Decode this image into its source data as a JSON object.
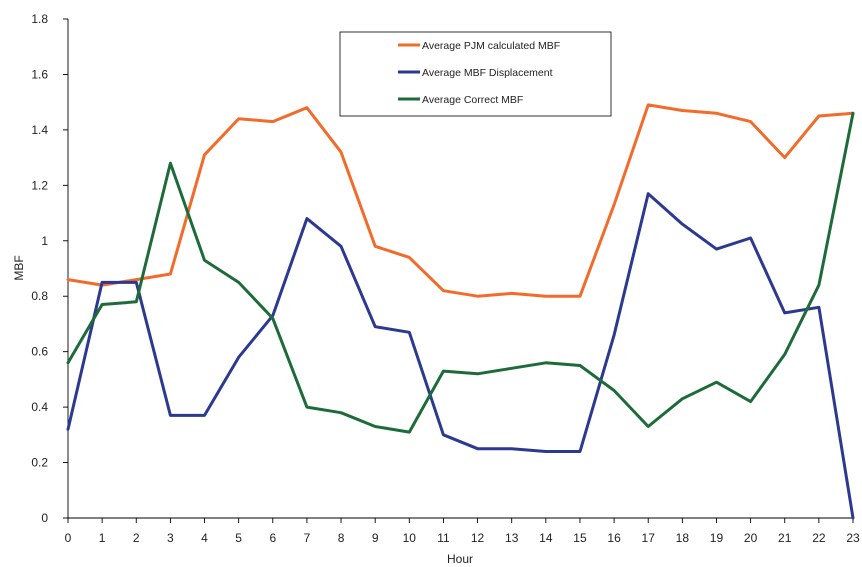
{
  "chart_data": {
    "type": "line",
    "title": "",
    "xlabel": "Hour",
    "ylabel": "MBF",
    "x": [
      0,
      1,
      2,
      3,
      4,
      5,
      6,
      7,
      8,
      9,
      10,
      11,
      12,
      13,
      14,
      15,
      16,
      17,
      18,
      19,
      20,
      21,
      22,
      23
    ],
    "x_tick_labels": [
      "0",
      "1",
      "2",
      "3",
      "4",
      "5",
      "6",
      "7",
      "8",
      "9",
      "10",
      "11",
      "12",
      "13",
      "14",
      "15",
      "16",
      "17",
      "18",
      "19",
      "20",
      "21",
      "22",
      "23"
    ],
    "xlim": [
      0,
      23
    ],
    "ylim": [
      0,
      1.8
    ],
    "y_ticks": [
      0,
      0.2,
      0.4,
      0.6,
      0.8,
      1,
      1.2,
      1.4,
      1.6,
      1.8
    ],
    "y_tick_labels": [
      "0",
      "0.2",
      "0.4",
      "0.6",
      "0.8",
      "1",
      "1.2",
      "1.4",
      "1.6",
      "1.8"
    ],
    "grid": false,
    "legend_position": "top-center",
    "series": [
      {
        "name": "Average PJM calculated MBF",
        "color": "#F26B2A",
        "values": [
          0.86,
          0.84,
          0.86,
          0.88,
          1.31,
          1.44,
          1.43,
          1.48,
          1.32,
          0.98,
          0.94,
          0.82,
          0.8,
          0.81,
          0.8,
          0.8,
          1.13,
          1.49,
          1.47,
          1.46,
          1.43,
          1.3,
          1.45,
          1.46
        ]
      },
      {
        "name": "Average MBF Displacement",
        "color": "#2B3990",
        "values": [
          0.32,
          0.85,
          0.85,
          0.37,
          0.37,
          0.58,
          0.73,
          1.08,
          0.98,
          0.69,
          0.67,
          0.3,
          0.25,
          0.25,
          0.24,
          0.24,
          0.66,
          1.17,
          1.06,
          0.97,
          1.01,
          0.74,
          0.76,
          0.0
        ]
      },
      {
        "name": "Average Correct MBF",
        "color": "#1E6B3A",
        "values": [
          0.56,
          0.77,
          0.78,
          1.28,
          0.93,
          0.85,
          0.72,
          0.4,
          0.38,
          0.33,
          0.31,
          0.53,
          0.52,
          0.54,
          0.56,
          0.55,
          0.46,
          0.33,
          0.43,
          0.49,
          0.42,
          0.59,
          0.84,
          1.46
        ]
      }
    ]
  }
}
